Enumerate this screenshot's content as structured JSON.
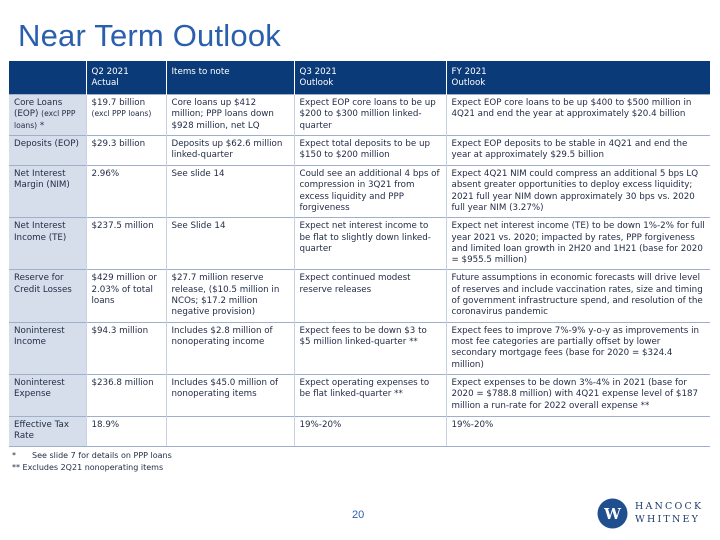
{
  "title": "Near Term Outlook",
  "table": {
    "headers": [
      {
        "line1": "",
        "line2": ""
      },
      {
        "line1": "Q2 2021",
        "line2": "Actual"
      },
      {
        "line1": "Items to note",
        "line2": ""
      },
      {
        "line1": "Q3 2021",
        "line2": "Outlook"
      },
      {
        "line1": "FY 2021",
        "line2": "Outlook"
      }
    ],
    "rows": [
      {
        "label": "Core Loans (EOP)",
        "label_small": "(excl PPP loans)",
        "label_suffix": " *",
        "actual": "$19.7 billion",
        "actual_small": "(excl PPP loans)",
        "items": "Core loans up $412 million; PPP loans down $928 million, net LQ",
        "q3": "Expect EOP core loans to be up $200 to $300 million linked-quarter",
        "fy": "Expect EOP core loans to be up $400 to $500 million in 4Q21 and end the year at approximately $20.4 billion"
      },
      {
        "label": "Deposits (EOP)",
        "actual": "$29.3 billion",
        "items": "Deposits up $62.6 million linked-quarter",
        "q3": "Expect total deposits to be up $150 to $200 million",
        "fy": "Expect EOP deposits to be stable in 4Q21 and end the year at approximately $29.5 billion"
      },
      {
        "label": "Net Interest Margin (NIM)",
        "actual": "2.96%",
        "items": "See slide 14",
        "q3": "Could see an additional 4 bps of compression in 3Q21 from excess liquidity and PPP forgiveness",
        "fy": "Expect 4Q21 NIM could compress an additional 5 bps LQ absent greater opportunities to deploy excess liquidity; 2021 full year NIM down approximately 30 bps vs. 2020 full year NIM (3.27%)"
      },
      {
        "label": "Net Interest Income (TE)",
        "actual": "$237.5 million",
        "items": "See Slide 14",
        "q3": "Expect net interest income to be flat to slightly down linked-quarter",
        "fy": "Expect net interest income (TE) to be down 1%-2% for full year 2021 vs. 2020; impacted by rates, PPP forgiveness and limited loan growth in 2H20 and 1H21 (base for 2020 = $955.5 million)"
      },
      {
        "label": "Reserve for Credit Losses",
        "actual": "$429 million or 2.03% of total loans",
        "items": "$27.7 million reserve release, ($10.5 million in NCOs; $17.2 million negative provision)",
        "q3": "Expect continued modest reserve releases",
        "fy": "Future assumptions in economic forecasts will drive level of reserves and include vaccination rates, size and timing of government infrastructure spend, and resolution of the coronavirus pandemic"
      },
      {
        "label": "Noninterest Income",
        "actual": "$94.3 million",
        "items": "Includes $2.8 million of nonoperating income",
        "q3": "Expect fees to be down $3 to $5 million linked-quarter **",
        "fy": "Expect fees to improve 7%-9% y-o-y as improvements in most fee categories are partially offset by lower secondary mortgage fees (base for 2020 = $324.4 million)"
      },
      {
        "label": "Noninterest Expense",
        "actual": "$236.8 million",
        "items": "Includes $45.0 million of nonoperating items",
        "q3": "Expect operating expenses to be flat linked-quarter **",
        "fy": "Expect expenses to be down 3%-4% in 2021 (base for 2020 = $788.8 million) with 4Q21 expense level of $187 million a run-rate for 2022 overall expense **"
      },
      {
        "label": "Effective Tax Rate",
        "actual": "18.9%",
        "items": "",
        "q3": "19%-20%",
        "fy": "19%-20%"
      }
    ]
  },
  "footnotes": {
    "note1_mark": "*",
    "note1_text": "See slide 7 for details on PPP loans",
    "note2": "** Excludes 2Q21 nonoperating items"
  },
  "page_number": "20",
  "logo": {
    "line1": "HANCOCK",
    "line2": "WHITNEY",
    "mark_letter": "W",
    "brand_color": "#1f4f8f"
  }
}
